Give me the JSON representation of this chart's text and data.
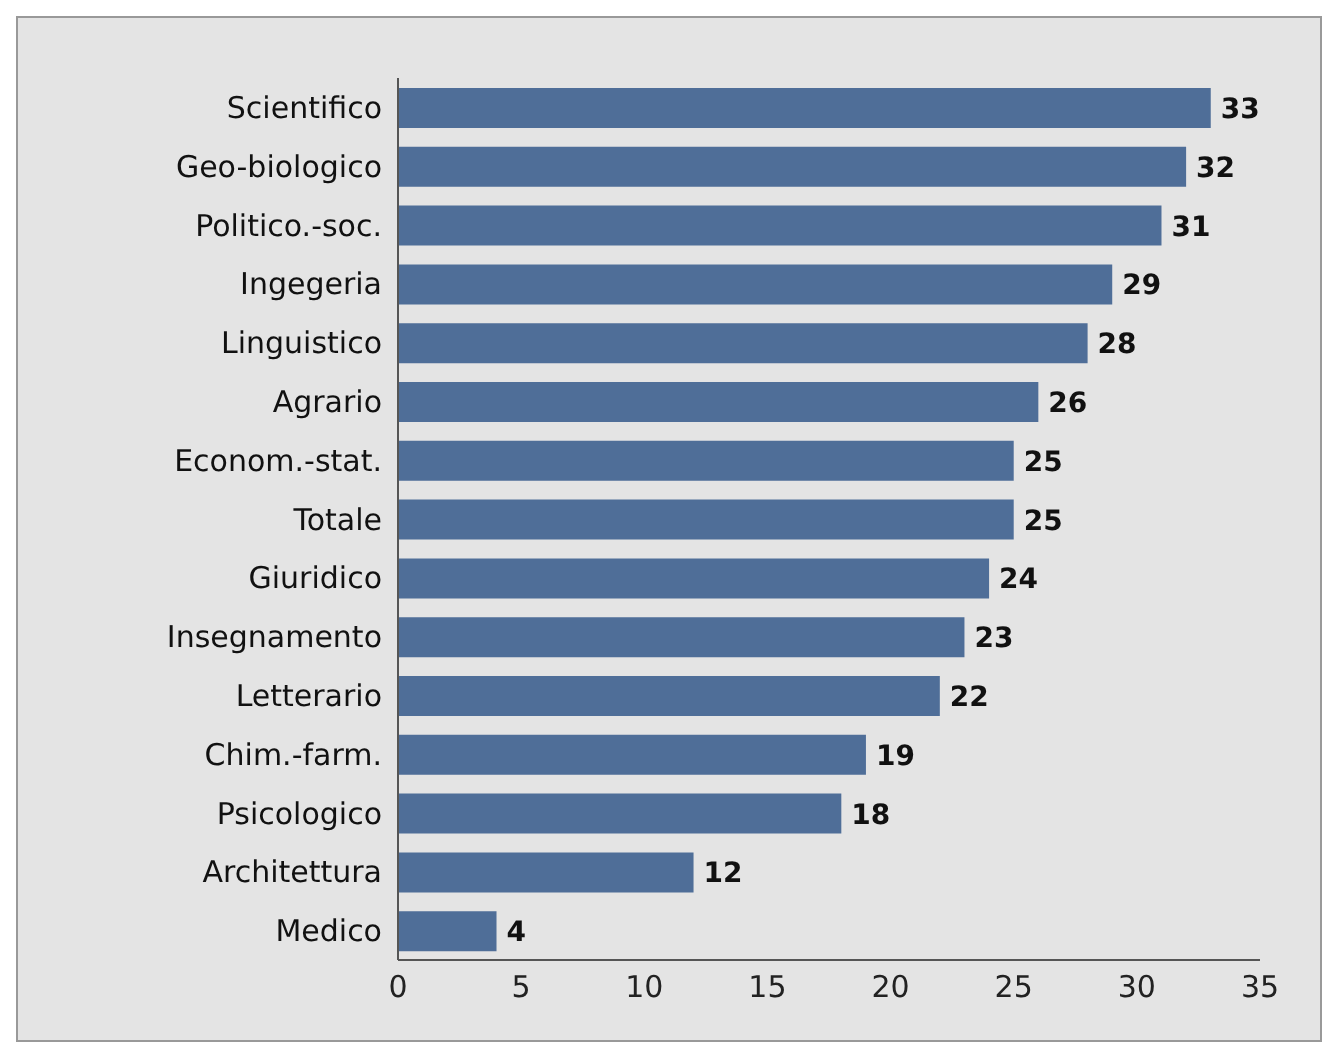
{
  "chart_data": {
    "type": "bar",
    "orientation": "horizontal",
    "categories": [
      "Scientifico",
      "Geo-biologico",
      "Politico.-soc.",
      "Ingegeria",
      "Linguistico",
      "Agrario",
      "Econom.-stat.",
      "Totale",
      "Giuridico",
      "Insegnamento",
      "Letterario",
      "Chim.-farm.",
      "Psicologico",
      "Architettura",
      "Medico"
    ],
    "values": [
      33,
      32,
      31,
      29,
      28,
      26,
      25,
      25,
      24,
      23,
      22,
      19,
      18,
      12,
      4
    ],
    "color": "#4f6e98",
    "xlim": [
      0,
      35
    ],
    "xticks": [
      0,
      5,
      10,
      15,
      20,
      25,
      30,
      35
    ],
    "data_labels": true,
    "grid": false
  }
}
